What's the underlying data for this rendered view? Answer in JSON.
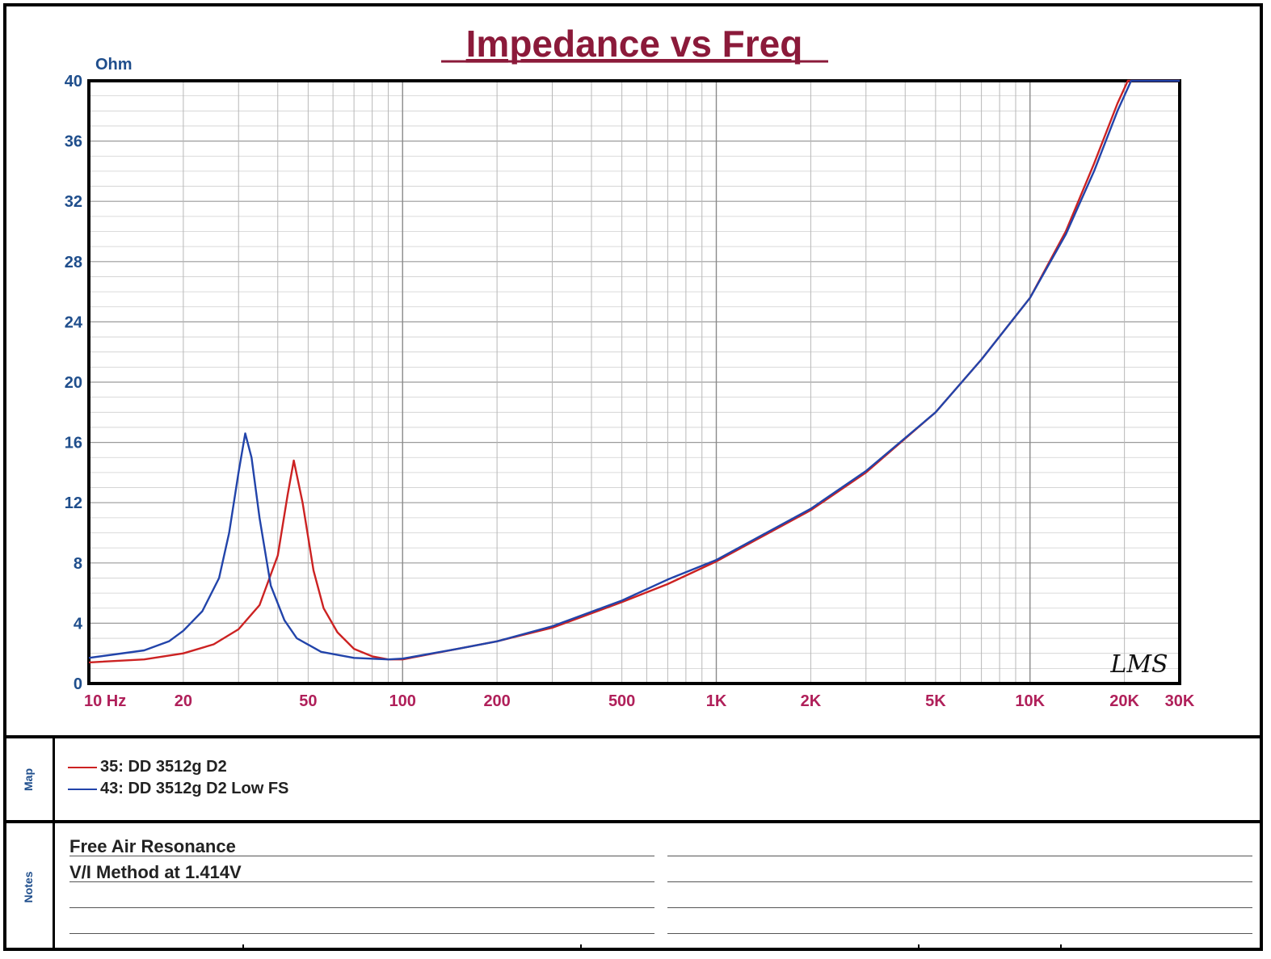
{
  "chart_data": {
    "type": "line",
    "title": "Impedance vs Freq",
    "ylabel": "Ohm",
    "xlabel": "",
    "xscale": "log",
    "xlim": [
      10,
      30000
    ],
    "ylim": [
      0,
      40
    ],
    "grid": true,
    "y_ticks": [
      0,
      4,
      8,
      12,
      16,
      20,
      24,
      28,
      32,
      36,
      40
    ],
    "y_tick_labels": [
      "0",
      "4",
      "8",
      "12",
      "16",
      "20",
      "24",
      "28",
      "32",
      "36",
      "40"
    ],
    "x_ticks": [
      10,
      20,
      50,
      100,
      200,
      500,
      1000,
      2000,
      5000,
      10000,
      20000,
      30000
    ],
    "x_tick_labels": [
      "10 Hz",
      "20",
      "50",
      "100",
      "200",
      "500",
      "1K",
      "2K",
      "5K",
      "10K",
      "20K",
      "30K"
    ],
    "series": [
      {
        "name": "35: DD 3512g D2",
        "color": "#cc2222",
        "points": [
          [
            10,
            1.4
          ],
          [
            15,
            1.6
          ],
          [
            20,
            2.0
          ],
          [
            25,
            2.6
          ],
          [
            30,
            3.6
          ],
          [
            35,
            5.2
          ],
          [
            40,
            8.5
          ],
          [
            43,
            12.5
          ],
          [
            45,
            14.8
          ],
          [
            48,
            12.0
          ],
          [
            52,
            7.5
          ],
          [
            56,
            5.0
          ],
          [
            62,
            3.4
          ],
          [
            70,
            2.3
          ],
          [
            80,
            1.8
          ],
          [
            90,
            1.6
          ],
          [
            100,
            1.6
          ],
          [
            150,
            2.3
          ],
          [
            200,
            2.8
          ],
          [
            300,
            3.7
          ],
          [
            500,
            5.4
          ],
          [
            700,
            6.6
          ],
          [
            1000,
            8.1
          ],
          [
            2000,
            11.5
          ],
          [
            3000,
            14.0
          ],
          [
            5000,
            18.0
          ],
          [
            7000,
            21.5
          ],
          [
            10000,
            25.6
          ],
          [
            13000,
            30.0
          ],
          [
            16000,
            34.5
          ],
          [
            19000,
            38.5
          ],
          [
            20500,
            40
          ],
          [
            30000,
            40
          ]
        ]
      },
      {
        "name": "43: DD 3512g D2  Low FS",
        "color": "#2244aa",
        "points": [
          [
            10,
            1.7
          ],
          [
            15,
            2.2
          ],
          [
            18,
            2.8
          ],
          [
            20,
            3.5
          ],
          [
            23,
            4.8
          ],
          [
            26,
            7.0
          ],
          [
            28,
            10.0
          ],
          [
            30,
            14.0
          ],
          [
            31.5,
            16.6
          ],
          [
            33,
            15.0
          ],
          [
            35,
            11.0
          ],
          [
            38,
            6.5
          ],
          [
            42,
            4.2
          ],
          [
            46,
            3.0
          ],
          [
            55,
            2.1
          ],
          [
            70,
            1.7
          ],
          [
            90,
            1.6
          ],
          [
            100,
            1.65
          ],
          [
            150,
            2.3
          ],
          [
            200,
            2.8
          ],
          [
            300,
            3.8
          ],
          [
            500,
            5.5
          ],
          [
            700,
            6.9
          ],
          [
            1000,
            8.2
          ],
          [
            2000,
            11.6
          ],
          [
            3000,
            14.1
          ],
          [
            5000,
            18.0
          ],
          [
            7000,
            21.5
          ],
          [
            10000,
            25.6
          ],
          [
            13000,
            29.8
          ],
          [
            16000,
            34.0
          ],
          [
            19000,
            38.0
          ],
          [
            21000,
            40
          ],
          [
            30000,
            40
          ]
        ]
      }
    ]
  },
  "watermark": "LMS",
  "map": {
    "label": "Map",
    "items": [
      {
        "text": "35: DD 3512g D2",
        "color": "#cc2222"
      },
      {
        "text": "43: DD 3512g D2  Low FS",
        "color": "#2244aa"
      }
    ]
  },
  "notes": {
    "label": "Notes",
    "lines": [
      "Free Air Resonance",
      "V/I Method at 1.414V"
    ]
  },
  "colors": {
    "title": "#8b1a3a",
    "y_axis_text": "#1f4e8c",
    "x_axis_text": "#b0205a"
  }
}
